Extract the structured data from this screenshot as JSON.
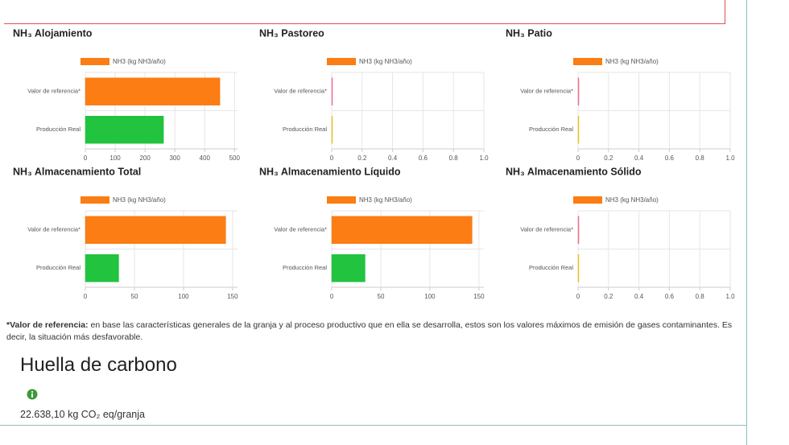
{
  "chart_data": [
    {
      "type": "bar",
      "orientation": "horizontal",
      "title": "NH₃ Alojamiento",
      "categories": [
        "Valor de referencia*",
        "Producción Real"
      ],
      "series": [
        {
          "name": "NH3 (kg NH3/año)",
          "color": "#fb7d13",
          "values": [
            451,
            262
          ]
        }
      ],
      "bar_colors": [
        "#fb7d13",
        "#21c33f"
      ],
      "xlim": [
        0,
        510
      ],
      "xticks": [
        0,
        100,
        200,
        300,
        400,
        500
      ],
      "grid": true
    },
    {
      "type": "bar",
      "orientation": "horizontal",
      "title": "NH₃ Pastoreo",
      "categories": [
        "Valor de referencia*",
        "Producción Real"
      ],
      "series": [
        {
          "name": "NH3 (kg NH3/año)",
          "color": "#fb7d13",
          "values": [
            0,
            0
          ]
        }
      ],
      "bar_colors": [
        "#f06a8a",
        "#e8c020"
      ],
      "xlim": [
        0,
        1
      ],
      "xticks": [
        0,
        0.2,
        0.4,
        0.6,
        0.8,
        {
          "value": 1,
          "label": "1.0"
        }
      ],
      "grid": true
    },
    {
      "type": "bar",
      "orientation": "horizontal",
      "title": "NH₃ Patio",
      "categories": [
        "Valor de referencia*",
        "Producción Real"
      ],
      "series": [
        {
          "name": "NH3 (kg NH3/año)",
          "color": "#fb7d13",
          "values": [
            0,
            0
          ]
        }
      ],
      "bar_colors": [
        "#f06a8a",
        "#e8c020"
      ],
      "xlim": [
        0,
        1
      ],
      "xticks": [
        0,
        0.2,
        0.4,
        0.6,
        0.8,
        {
          "value": 1,
          "label": "1.0"
        }
      ],
      "grid": true
    },
    {
      "type": "bar",
      "orientation": "horizontal",
      "title": "NH₃ Almacenamiento Total",
      "categories": [
        "Valor de referencia*",
        "Producción Real"
      ],
      "series": [
        {
          "name": "NH3 (kg NH3/año)",
          "color": "#fb7d13",
          "values": [
            143,
            34
          ]
        }
      ],
      "bar_colors": [
        "#fb7d13",
        "#21c33f"
      ],
      "xlim": [
        0,
        155
      ],
      "xticks": [
        0,
        50,
        100,
        150
      ],
      "grid": true
    },
    {
      "type": "bar",
      "orientation": "horizontal",
      "title": "NH₃ Almacenamiento Líquido",
      "categories": [
        "Valor de referencia*",
        "Producción Real"
      ],
      "series": [
        {
          "name": "NH3 (kg NH3/año)",
          "color": "#fb7d13",
          "values": [
            143,
            34
          ]
        }
      ],
      "bar_colors": [
        "#fb7d13",
        "#21c33f"
      ],
      "xlim": [
        0,
        155
      ],
      "xticks": [
        0,
        50,
        100,
        150
      ],
      "grid": true
    },
    {
      "type": "bar",
      "orientation": "horizontal",
      "title": "NH₃ Almacenamiento Sólido",
      "categories": [
        "Valor de referencia*",
        "Producción Real"
      ],
      "series": [
        {
          "name": "NH3 (kg NH3/año)",
          "color": "#fb7d13",
          "values": [
            0,
            0
          ]
        }
      ],
      "bar_colors": [
        "#f06a8a",
        "#e8c020"
      ],
      "xlim": [
        0,
        1
      ],
      "xticks": [
        0,
        0.2,
        0.4,
        0.6,
        0.8,
        {
          "value": 1,
          "label": "1.0"
        }
      ],
      "grid": true
    }
  ],
  "footnote": {
    "term": "*Valor de referencia:",
    "text": "en base las características generales de la granja y al proceso productivo que en ella se desarrolla, estos son los valores máximos de emisión de gases contaminantes. Es decir, la situación más desfavorable."
  },
  "carbon": {
    "title": "Huella de carbono",
    "value": "22.638,10 kg CO₂ eq/granja"
  }
}
